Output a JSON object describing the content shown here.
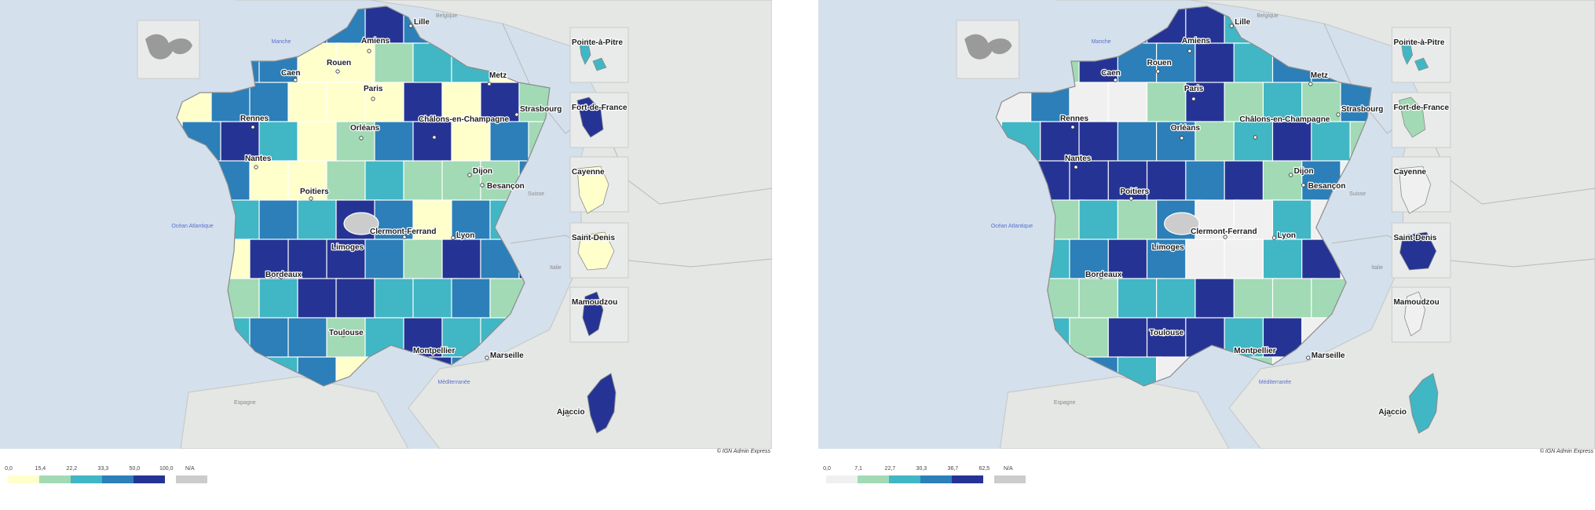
{
  "palettes": {
    "left": [
      "#ffffcc",
      "#a1dab4",
      "#41b6c4",
      "#2c7fb8",
      "#253494"
    ],
    "right": [
      "#f0f0f0",
      "#a1dab4",
      "#41b6c4",
      "#2c7fb8",
      "#253494"
    ],
    "na": "#cccccc"
  },
  "left_map": {
    "credit": "© IGN Admin Express",
    "legend": {
      "breaks": [
        "0,0",
        "15,4",
        "22,2",
        "33,3",
        "50,0",
        "100,0"
      ],
      "na_label": "N/A"
    }
  },
  "right_map": {
    "credit": "© IGN Admin Express",
    "legend": {
      "breaks": [
        "0,0",
        "7,1",
        "22,7",
        "30,3",
        "36,7",
        "62,5"
      ],
      "na_label": "N/A"
    }
  },
  "cities": [
    "Lille",
    "Amiens",
    "Rouen",
    "Caen",
    "Paris",
    "Metz",
    "Châlons-en-Champagne",
    "Strasbourg",
    "Rennes",
    "Orléans",
    "Nantes",
    "Dijon",
    "Besançon",
    "Poitiers",
    "Clermont-Ferrand",
    "Limoges",
    "Lyon",
    "Bordeaux",
    "Toulouse",
    "Montpellier",
    "Marseille",
    "Ajaccio"
  ],
  "overseas": [
    "Pointe-à-Pitre",
    "Fort-de-France",
    "Cayenne",
    "Saint-Denis",
    "Mamoudzou"
  ],
  "countries": [
    "Belgique",
    "Suisse",
    "Italie",
    "Espagne"
  ],
  "seas": [
    "Manche",
    "Océan Atlantique",
    "Méditerranée"
  ],
  "corsica_classes": {
    "left": 4,
    "right": 2
  },
  "overseas_classes": {
    "left": [
      2,
      4,
      0,
      0,
      4
    ],
    "right": [
      2,
      1,
      0,
      4,
      0
    ]
  }
}
